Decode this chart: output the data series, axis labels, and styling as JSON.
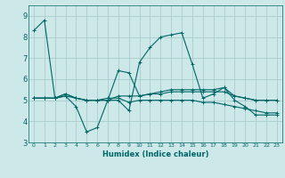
{
  "xlabel": "Humidex (Indice chaleur)",
  "xlim": [
    -0.5,
    23.5
  ],
  "ylim": [
    3,
    9.5
  ],
  "yticks": [
    3,
    4,
    5,
    6,
    7,
    8,
    9
  ],
  "xticks": [
    0,
    1,
    2,
    3,
    4,
    5,
    6,
    7,
    8,
    9,
    10,
    11,
    12,
    13,
    14,
    15,
    16,
    17,
    18,
    19,
    20,
    21,
    22,
    23
  ],
  "background_color": "#cce8e8",
  "grid_color": "#aacccc",
  "line_color": "#006666",
  "lines": [
    {
      "x": [
        0,
        1,
        2,
        3,
        4,
        5,
        6,
        7,
        8,
        9,
        10,
        11,
        12,
        13,
        14,
        15,
        16,
        17,
        18,
        19,
        20,
        21,
        22,
        23
      ],
      "y": [
        8.3,
        8.8,
        5.1,
        5.2,
        4.7,
        3.5,
        3.7,
        5.0,
        5.0,
        4.5,
        6.8,
        7.5,
        8.0,
        8.1,
        8.2,
        6.7,
        5.1,
        5.3,
        5.6,
        5.0,
        4.7,
        4.3,
        4.3,
        4.3
      ]
    },
    {
      "x": [
        0,
        1,
        2,
        3,
        4,
        5,
        6,
        7,
        8,
        9,
        10,
        11,
        12,
        13,
        14,
        15,
        16,
        17,
        18,
        19,
        20,
        21,
        22,
        23
      ],
      "y": [
        5.1,
        5.1,
        5.1,
        5.3,
        5.1,
        5.0,
        5.0,
        5.0,
        5.2,
        5.2,
        5.2,
        5.3,
        5.3,
        5.4,
        5.4,
        5.4,
        5.4,
        5.4,
        5.4,
        5.2,
        5.1,
        5.0,
        5.0,
        5.0
      ]
    },
    {
      "x": [
        0,
        1,
        2,
        3,
        4,
        5,
        6,
        7,
        8,
        9,
        10,
        11,
        12,
        13,
        14,
        15,
        16,
        17,
        18,
        19,
        20,
        21,
        22,
        23
      ],
      "y": [
        5.1,
        5.1,
        5.1,
        5.3,
        5.1,
        5.0,
        5.0,
        5.0,
        6.4,
        6.3,
        5.2,
        5.3,
        5.4,
        5.5,
        5.5,
        5.5,
        5.5,
        5.5,
        5.6,
        5.2,
        5.1,
        5.0,
        5.0,
        5.0
      ]
    },
    {
      "x": [
        0,
        1,
        2,
        3,
        4,
        5,
        6,
        7,
        8,
        9,
        10,
        11,
        12,
        13,
        14,
        15,
        16,
        17,
        18,
        19,
        20,
        21,
        22,
        23
      ],
      "y": [
        5.1,
        5.1,
        5.1,
        5.2,
        5.1,
        5.0,
        5.0,
        5.1,
        5.1,
        4.9,
        5.0,
        5.0,
        5.0,
        5.0,
        5.0,
        5.0,
        4.9,
        4.9,
        4.8,
        4.7,
        4.6,
        4.5,
        4.4,
        4.4
      ]
    }
  ]
}
